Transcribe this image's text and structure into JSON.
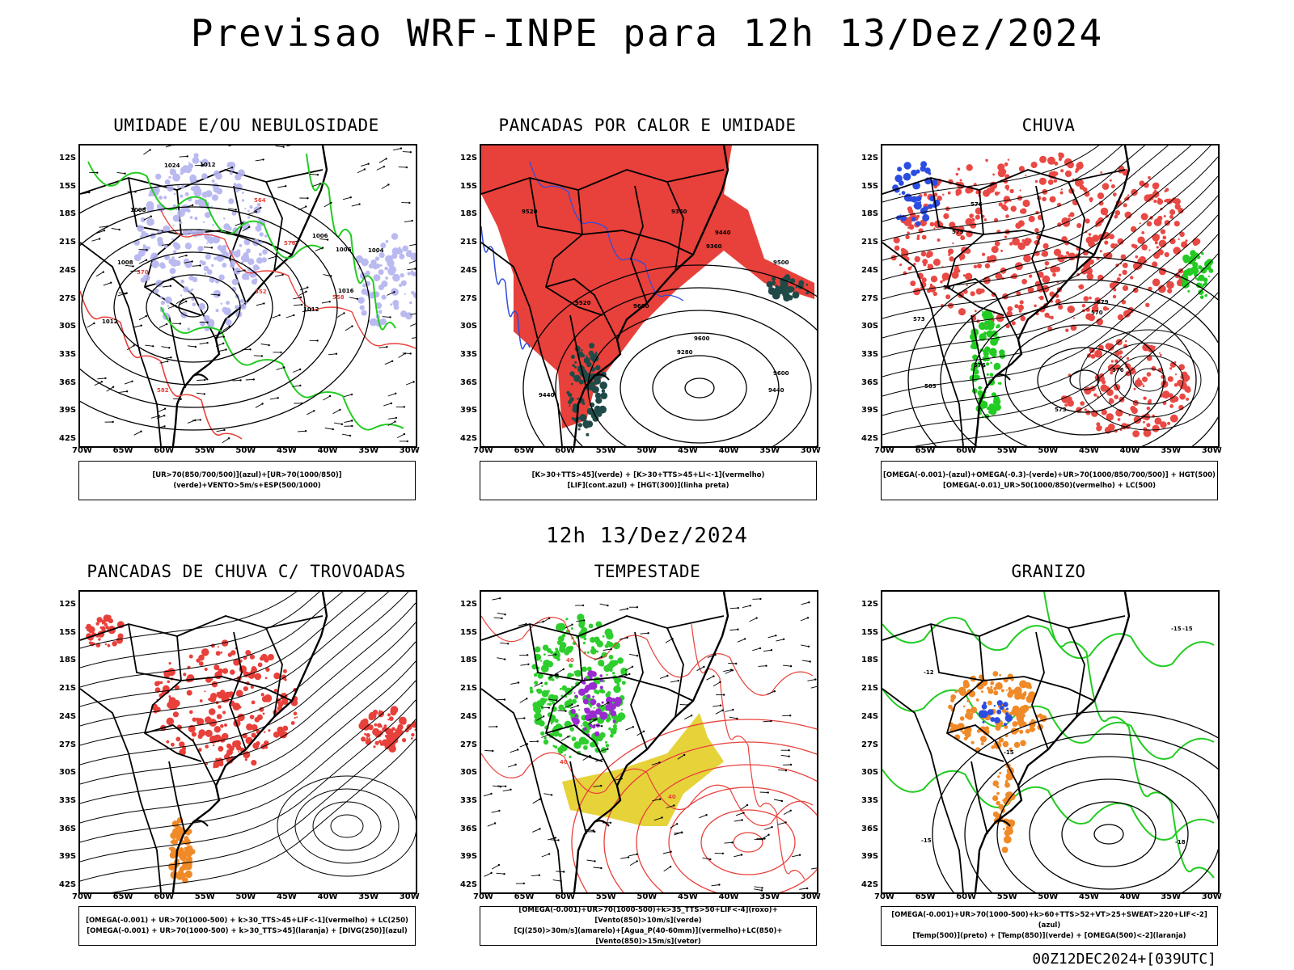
{
  "title": "Previsao WRF-INPE  para 12h 13/Dez/2024",
  "mid_time": "12h 13/Dez/2024",
  "footer": "00Z12DEC2024+[039UTC]",
  "latitudes": [
    "12S",
    "15S",
    "18S",
    "21S",
    "24S",
    "27S",
    "30S",
    "33S",
    "36S",
    "39S",
    "42S"
  ],
  "longitudes": [
    "70W",
    "65W",
    "60W",
    "55W",
    "50W",
    "45W",
    "40W",
    "35W",
    "30W"
  ],
  "colors": {
    "red": "#e8403a",
    "green": "#22cc22",
    "blue": "#2b4de0",
    "lavender": "#b3b3f0",
    "darkteal": "#1f4a48",
    "yellow": "#e6d33a",
    "orange": "#f08a28",
    "purple": "#9a2bd0"
  },
  "panels": [
    {
      "id": "umidade",
      "title": "UMIDADE E/OU NEBULOSIDADE",
      "legend": [
        "[UR>70(850/700/500)](azul)+[UR>70(1000/850)](verde)+VENTO>5m/s+ESP(500/1000)"
      ],
      "contour_labels": [
        "1006",
        "1012",
        "1008",
        "1004",
        "1016",
        "1012",
        "1008",
        "1006",
        "1012",
        "1024",
        "576",
        "570",
        "564",
        "558",
        "552",
        "582"
      ]
    },
    {
      "id": "pancadas-calor",
      "title": "PANCADAS POR CALOR E UMIDADE",
      "legend": [
        "[K>30+TTS>45](verde) + [K>30+TTS>45+LI<-1](vermelho)",
        "[LIF](cont.azul) + [HGT(300)](linha preta)"
      ],
      "contour_labels": [
        "9600",
        "9600",
        "9600",
        "9500",
        "9520",
        "9520",
        "9440",
        "9440",
        "9440",
        "9360",
        "9280",
        "9360"
      ]
    },
    {
      "id": "chuva",
      "title": "CHUVA",
      "legend": [
        "[OMEGA(-0.001)-(azul)+OMEGA(-0.3)-(verde)+UR>70(1000/850/700/500)] + HGT(500)",
        "[OMEGA(-0.01)_UR>50(1000/850)(vermelho) + LC(500)"
      ],
      "contour_labels": [
        "585",
        "579",
        "576",
        "576",
        "576",
        "573",
        "570",
        "567",
        "573",
        "579"
      ]
    },
    {
      "id": "pancadas-trovoadas",
      "title": "PANCADAS DE CHUVA C/ TROVOADAS",
      "legend": [
        "[OMEGA(-0.001) + UR>70(1000-500) + k>30_TTS>45+LIF<-1](vermelho) + LC(250)",
        "[OMEGA(-0.001) + UR>70(1000-500) + k>30_TTS>45](laranja) + [DIVG(250)](azul)"
      ],
      "contour_labels": []
    },
    {
      "id": "tempestade",
      "title": "TEMPESTADE",
      "legend": [
        "[OMEGA(-0.001)+UR>70(1000-500)+k>35_TTS>50+LIF<-4](roxo)+[Vento(850)>10m/s](verde)",
        "[CJ(250)>30m/s](amarelo)+[Agua_P(40-60mm)](vermelho)+LC(850)+[Vento(850)>15m/s](vetor)"
      ],
      "contour_labels": [
        "40",
        "40",
        "40"
      ]
    },
    {
      "id": "granizo",
      "title": "GRANIZO",
      "legend": [
        "[OMEGA(-0.001)+UR>70(1000-500)+k>60+TTS>52+VT>25+SWEAT>220+LIF<-2](azul)",
        "[Temp(500)](preto) + [Temp(850)](verde) + [OMEGA(500)<-2](laranja)"
      ],
      "contour_labels": [
        "-15",
        "-15",
        "-15",
        "-15",
        "-18",
        "-12"
      ]
    }
  ]
}
